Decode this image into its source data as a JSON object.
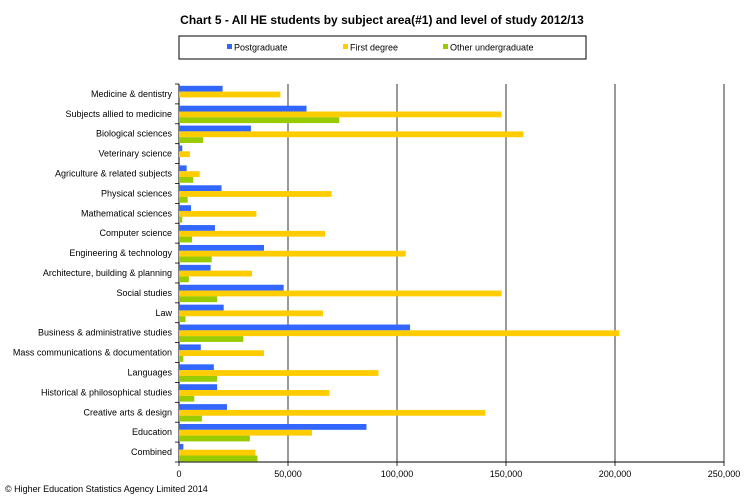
{
  "chart_data": {
    "type": "bar",
    "orientation": "horizontal",
    "title": "Chart 5 - All HE students  by subject  area(#1) and level of study  2012/13",
    "categories": [
      "Medicine & dentistry",
      "Subjects allied to medicine",
      "Biological sciences",
      "Veterinary science",
      "Agriculture & related subjects",
      "Physical sciences",
      "Mathematical sciences",
      "Computer science",
      "Engineering & technology",
      "Architecture, building & planning",
      "Social studies",
      "Law",
      "Business & administrative studies",
      "Mass communications & documentation",
      "Languages",
      "Historical & philosophical studies",
      "Creative arts & design",
      "Education",
      "Combined"
    ],
    "series": [
      {
        "name": "Postgraduate",
        "color": "#3366ff",
        "values": [
          20000,
          58500,
          33000,
          1500,
          3500,
          19500,
          5500,
          16500,
          39000,
          14500,
          48000,
          20500,
          106000,
          10000,
          16000,
          17500,
          22000,
          86000,
          2000
        ]
      },
      {
        "name": "First degree",
        "color": "#ffcc00",
        "values": [
          46500,
          148000,
          158000,
          5000,
          9500,
          70000,
          35500,
          67000,
          104000,
          33500,
          148000,
          66000,
          202000,
          39000,
          91500,
          69000,
          140500,
          61000,
          35000
        ]
      },
      {
        "name": "Other undergraduate",
        "color": "#99cc00",
        "values": [
          0,
          73500,
          11000,
          0,
          6500,
          4000,
          1500,
          6000,
          15000,
          4500,
          17500,
          3000,
          29500,
          2000,
          17500,
          7000,
          10500,
          32500,
          36000
        ]
      }
    ],
    "x_ticks": [
      "0",
      "50,000",
      "100,000",
      "150,000",
      "200,000",
      "250,000"
    ],
    "xlim": [
      0,
      250000
    ],
    "grid": true,
    "legend": "top",
    "footer": "© Higher Education Statistics Agency Limited 2014"
  }
}
